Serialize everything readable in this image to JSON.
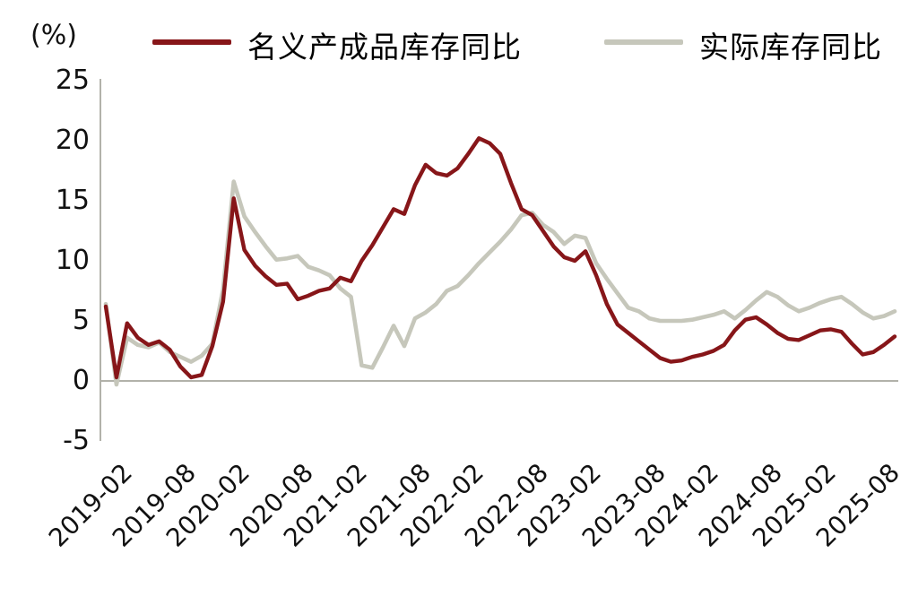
{
  "chart_data": {
    "type": "line",
    "unit_label": "(%)",
    "legend_position": "top",
    "grid": false,
    "axis_color": "#b2b2aa",
    "text_color": "#111111",
    "ylim": [
      -5,
      25
    ],
    "y_ticks": [
      "25",
      "20",
      "15",
      "10",
      "5",
      "0",
      "-5"
    ],
    "y_tick_values": [
      25,
      20,
      15,
      10,
      5,
      0,
      -5
    ],
    "x_tick_labels": [
      "2019-02",
      "2019-08",
      "2020-02",
      "2020-08",
      "2021-02",
      "2021-08",
      "2022-02",
      "2022-08",
      "2023-02",
      "2023-08",
      "2024-02",
      "2024-08",
      "2025-02",
      "2025-08"
    ],
    "x": [
      "2019-02",
      "2019-03",
      "2019-04",
      "2019-05",
      "2019-06",
      "2019-07",
      "2019-08",
      "2019-09",
      "2019-10",
      "2019-11",
      "2019-12",
      "2020-02",
      "2020-03",
      "2020-04",
      "2020-05",
      "2020-06",
      "2020-07",
      "2020-08",
      "2020-09",
      "2020-10",
      "2020-11",
      "2020-12",
      "2021-02",
      "2021-03",
      "2021-04",
      "2021-05",
      "2021-06",
      "2021-07",
      "2021-08",
      "2021-09",
      "2021-10",
      "2021-11",
      "2021-12",
      "2022-02",
      "2022-03",
      "2022-04",
      "2022-05",
      "2022-06",
      "2022-07",
      "2022-08",
      "2022-09",
      "2022-10",
      "2022-11",
      "2022-12",
      "2023-02",
      "2023-03",
      "2023-04",
      "2023-05",
      "2023-06",
      "2023-07",
      "2023-08",
      "2023-09",
      "2023-10",
      "2023-11",
      "2023-12",
      "2024-02",
      "2024-03",
      "2024-04",
      "2024-05",
      "2024-06",
      "2024-07",
      "2024-08",
      "2024-09",
      "2024-10",
      "2024-11",
      "2024-12",
      "2025-02",
      "2025-03",
      "2025-04",
      "2025-05",
      "2025-06",
      "2025-07",
      "2025-08",
      "2025-09",
      "2025-10"
    ],
    "series": [
      {
        "name": "名义产成品库存同比",
        "color": "#871619",
        "values": [
          6.2,
          0.3,
          4.8,
          3.6,
          3.0,
          3.3,
          2.6,
          1.2,
          0.3,
          0.5,
          2.9,
          6.6,
          15.2,
          10.9,
          9.6,
          8.7,
          8.0,
          8.1,
          6.8,
          7.1,
          7.5,
          7.7,
          8.6,
          8.3,
          10.0,
          11.3,
          12.8,
          14.3,
          13.9,
          16.3,
          18.0,
          17.3,
          17.1,
          17.7,
          18.9,
          20.2,
          19.8,
          18.9,
          16.5,
          14.3,
          13.8,
          12.5,
          11.2,
          10.3,
          10.0,
          10.8,
          8.8,
          6.4,
          4.7,
          4.0,
          3.3,
          2.6,
          1.9,
          1.6,
          1.7,
          2.0,
          2.2,
          2.5,
          3.0,
          4.2,
          5.1,
          5.3,
          4.7,
          4.0,
          3.5,
          3.4,
          3.8,
          4.2,
          4.3,
          4.1,
          3.1,
          2.2,
          2.4,
          3.0,
          3.7
        ]
      },
      {
        "name": "实际库存同比",
        "color": "#c6c7bb",
        "values": [
          6.4,
          -0.3,
          3.6,
          3.0,
          2.8,
          3.2,
          2.4,
          2.0,
          1.6,
          2.1,
          3.1,
          7.6,
          16.6,
          13.7,
          12.4,
          11.2,
          10.1,
          10.2,
          10.4,
          9.5,
          9.2,
          8.8,
          7.7,
          7.0,
          1.3,
          1.1,
          2.8,
          4.6,
          2.9,
          5.2,
          5.7,
          6.4,
          7.5,
          7.9,
          8.8,
          9.8,
          10.7,
          11.6,
          12.6,
          13.8,
          14.0,
          13.0,
          12.4,
          11.4,
          12.1,
          11.9,
          9.8,
          8.5,
          7.3,
          6.1,
          5.8,
          5.2,
          5.0,
          5.0,
          5.0,
          5.1,
          5.3,
          5.5,
          5.8,
          5.2,
          5.9,
          6.7,
          7.4,
          7.0,
          6.3,
          5.8,
          6.1,
          6.5,
          6.8,
          7.0,
          6.4,
          5.7,
          5.2,
          5.4,
          5.8
        ]
      }
    ]
  }
}
